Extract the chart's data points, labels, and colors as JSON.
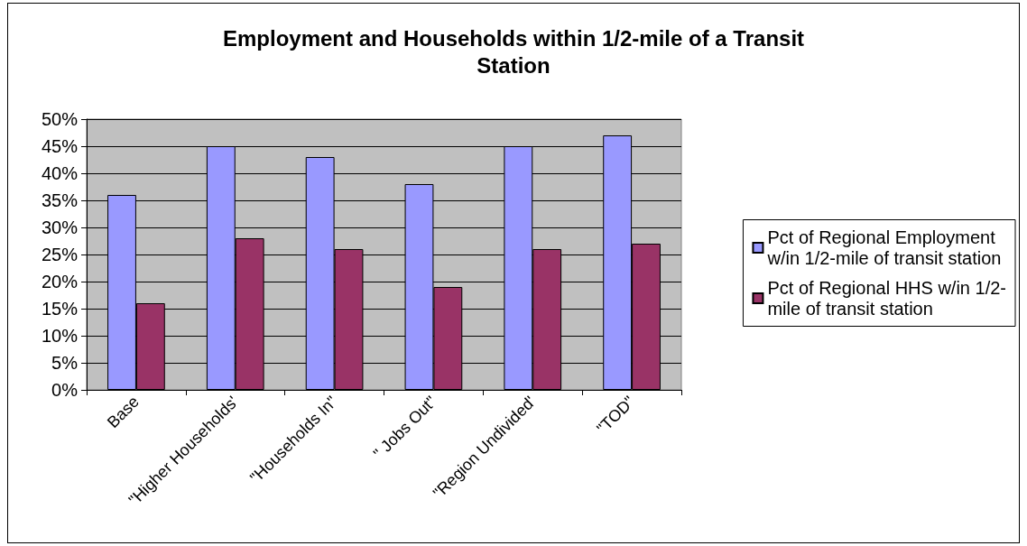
{
  "chart_data": {
    "type": "bar",
    "title": "Employment and Households within 1/2-mile of a Transit Station",
    "categories": [
      "Base",
      "\"Higher Households'",
      "\"Households In\"",
      "\" Jobs Out\"",
      "\"Region Undivided'",
      "\"TOD\""
    ],
    "series": [
      {
        "name": "Pct of Regional Employment w/in 1/2-mile of transit station",
        "color": "#9999ff",
        "values": [
          36,
          45,
          43,
          38,
          45,
          47
        ]
      },
      {
        "name": "Pct of Regional HHS w/in 1/2-mile of transit station",
        "color": "#993366",
        "values": [
          16,
          28,
          26,
          19,
          26,
          27
        ]
      }
    ],
    "ylim": [
      0,
      50
    ],
    "yticks": [
      {
        "value": 0,
        "label": "0%"
      },
      {
        "value": 5,
        "label": "5%"
      },
      {
        "value": 10,
        "label": "10%"
      },
      {
        "value": 15,
        "label": "15%"
      },
      {
        "value": 20,
        "label": "20%"
      },
      {
        "value": 25,
        "label": "25%"
      },
      {
        "value": 30,
        "label": "30%"
      },
      {
        "value": 35,
        "label": "35%"
      },
      {
        "value": 40,
        "label": "40%"
      },
      {
        "value": 45,
        "label": "45%"
      },
      {
        "value": 50,
        "label": "50%"
      }
    ],
    "grid": "y",
    "legend": "right"
  }
}
